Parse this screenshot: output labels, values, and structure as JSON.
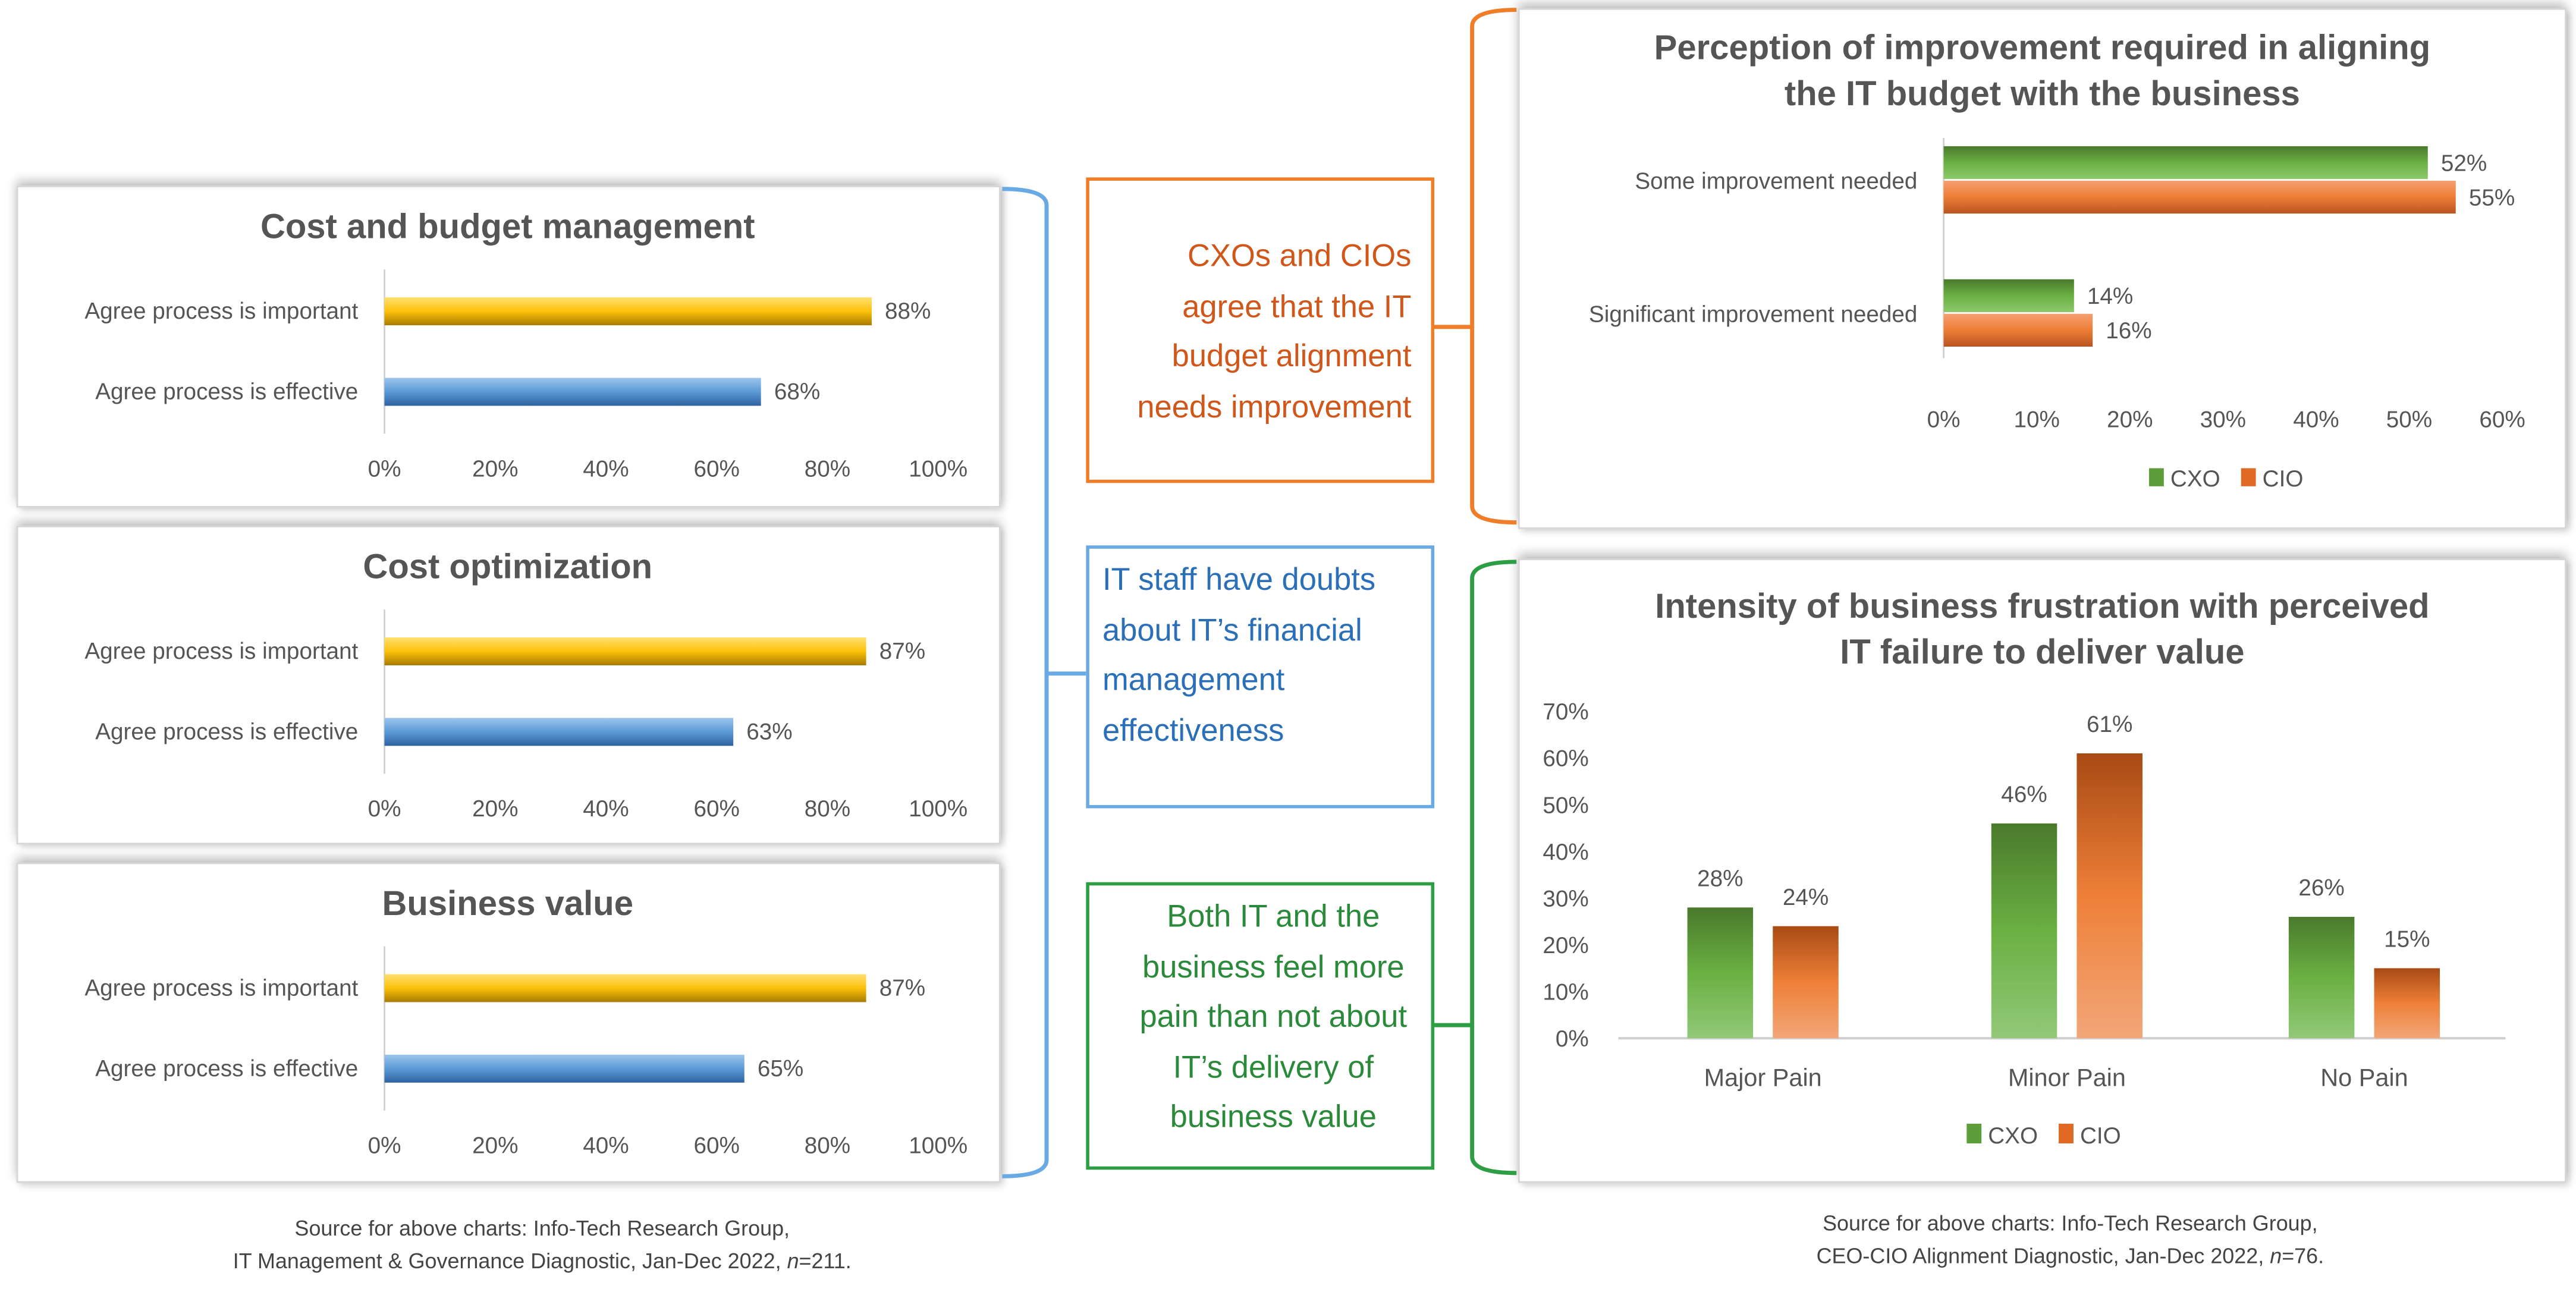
{
  "colors": {
    "important": "#f5b800",
    "effective": "#4a86c8",
    "cxo": "#5e9e3a",
    "cio": "#e06a24",
    "orange": "#f07d28",
    "blue": "#6aaae4",
    "green": "#2e9e44",
    "orange_text": "#d0561a",
    "blue_text": "#2a6fb8",
    "green_text": "#2a8a3a"
  },
  "callouts": {
    "budget": "CXOs and CIOs agree that the IT budget alignment needs improvement",
    "it_staff": "IT staff have doubts about IT’s financial management effectiveness",
    "pain": "Both IT and the business feel more pain than not about IT’s delivery of business value"
  },
  "sources": {
    "left_line1": "Source for above charts: Info-Tech Research Group,",
    "left_line2_prefix": "IT Management & Governance Diagnostic, Jan-Dec 2022, ",
    "left_n": "n",
    "left_n_value": "=211.",
    "right_line1": "Source for above charts: Info-Tech Research Group,",
    "right_line2_prefix": "CEO-CIO Alignment Diagnostic, Jan-Dec 2022, ",
    "right_n": "n",
    "right_n_value": "=76."
  },
  "chart_data": [
    {
      "type": "bar",
      "orientation": "horizontal",
      "title": "Cost and budget management",
      "categories": [
        "Agree process is important",
        "Agree process is effective"
      ],
      "values": [
        88,
        68
      ],
      "data_labels": [
        "88%",
        "68%"
      ],
      "xlim": [
        0,
        100
      ],
      "ticks": [
        "0%",
        "20%",
        "40%",
        "60%",
        "80%",
        "100%"
      ]
    },
    {
      "type": "bar",
      "orientation": "horizontal",
      "title": "Cost optimization",
      "categories": [
        "Agree process is important",
        "Agree process is effective"
      ],
      "values": [
        87,
        63
      ],
      "data_labels": [
        "87%",
        "63%"
      ],
      "xlim": [
        0,
        100
      ],
      "ticks": [
        "0%",
        "20%",
        "40%",
        "60%",
        "80%",
        "100%"
      ]
    },
    {
      "type": "bar",
      "orientation": "horizontal",
      "title": "Business value",
      "categories": [
        "Agree process is important",
        "Agree process is effective"
      ],
      "values": [
        87,
        65
      ],
      "data_labels": [
        "87%",
        "65%"
      ],
      "xlim": [
        0,
        100
      ],
      "ticks": [
        "0%",
        "20%",
        "40%",
        "60%",
        "80%",
        "100%"
      ]
    },
    {
      "type": "bar",
      "orientation": "horizontal",
      "title": "Perception of improvement required in aligning the IT budget with the business",
      "title_lines": [
        "Perception of improvement required in aligning",
        "the IT budget with the business"
      ],
      "categories": [
        "Some improvement needed",
        "Significant improvement needed"
      ],
      "series": [
        {
          "name": "CXO",
          "values": [
            52,
            14
          ],
          "labels": [
            "52%",
            "14%"
          ]
        },
        {
          "name": "CIO",
          "values": [
            55,
            16
          ],
          "labels": [
            "55%",
            "16%"
          ]
        }
      ],
      "xlim": [
        0,
        60
      ],
      "ticks": [
        "0%",
        "10%",
        "20%",
        "30%",
        "40%",
        "50%",
        "60%"
      ],
      "legend": "bottom"
    },
    {
      "type": "bar",
      "orientation": "vertical",
      "title": "Intensity of business frustration with perceived IT failure to deliver value",
      "title_lines": [
        "Intensity of business frustration with perceived",
        "IT failure to deliver value"
      ],
      "categories": [
        "Major Pain",
        "Minor Pain",
        "No Pain"
      ],
      "series": [
        {
          "name": "CXO",
          "values": [
            28,
            46,
            26
          ],
          "labels": [
            "28%",
            "46%",
            "26%"
          ]
        },
        {
          "name": "CIO",
          "values": [
            24,
            61,
            15
          ],
          "labels": [
            "24%",
            "61%",
            "15%"
          ]
        }
      ],
      "ylim": [
        0,
        70
      ],
      "ticks": [
        "0%",
        "10%",
        "20%",
        "30%",
        "40%",
        "50%",
        "60%",
        "70%"
      ],
      "legend": "bottom"
    }
  ]
}
